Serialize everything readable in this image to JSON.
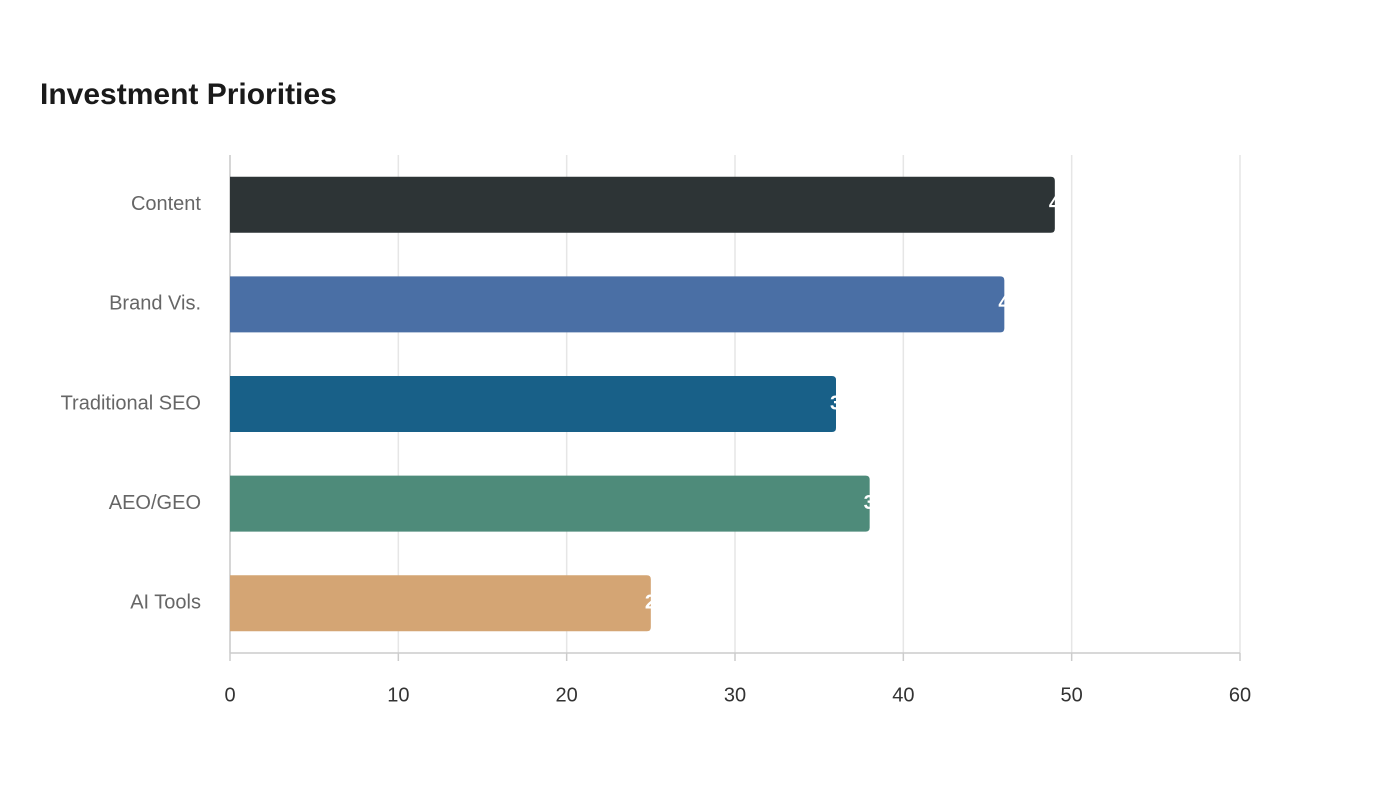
{
  "chart_data": {
    "type": "bar",
    "orientation": "horizontal",
    "title": "Investment Priorities",
    "categories": [
      "Content",
      "Brand Vis.",
      "Traditional SEO",
      "AEO/GEO",
      "AI Tools"
    ],
    "values": [
      49,
      46,
      36,
      38,
      25
    ],
    "colors": [
      "#2d3436",
      "#4a6fa5",
      "#186088",
      "#4e8b7a",
      "#d4a574"
    ],
    "xlim": [
      0,
      60
    ],
    "xticks": [
      0,
      10,
      20,
      30,
      40,
      50,
      60
    ],
    "grid": true
  }
}
